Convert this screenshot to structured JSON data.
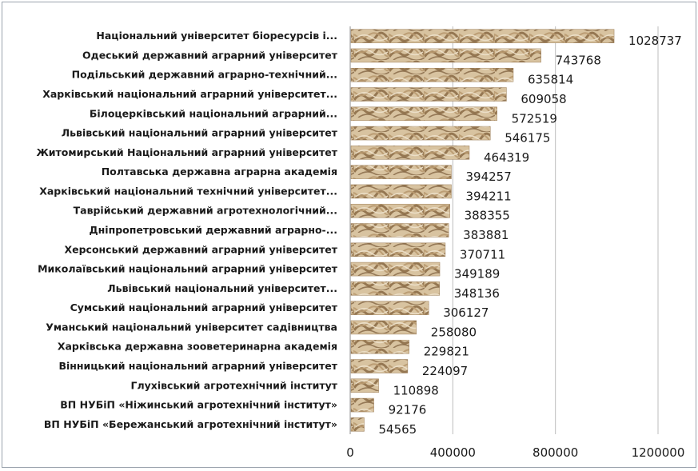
{
  "chart_data": {
    "type": "bar",
    "orientation": "horizontal",
    "categories": [
      "Національний університет біоресурсів і...",
      "Одеський державний аграрний університет",
      "Подільський державний аграрно-технічний...",
      "Харківський національний аграрний університет...",
      "Білоцерківський національний аграрний...",
      "Львівський національний аграрний університет",
      "Житомирський Національний аграрний університет",
      "Полтавська державна аграрна академія",
      "Харківський національний технічний університет...",
      "Таврійський державний агротехнологічний...",
      "Дніпропетровський державний аграрно-...",
      "Херсонський державний аграрний університет",
      "Миколаївський національний аграрний університет",
      "Львівський національний університет...",
      "Сумський національний аграрний університет",
      "Уманський національний університет садівництва",
      "Харківська державна зооветеринарна академія",
      "Вінницький національний аграрний університет",
      "Глухівський агротехнічний інститут",
      "ВП НУБіП «Ніжинський агротехнічний інститут»",
      "ВП НУБіП «Бережанський агротехнічний інститут»"
    ],
    "values": [
      1028737,
      743768,
      635814,
      609058,
      572519,
      546175,
      464319,
      394257,
      394211,
      388355,
      383881,
      370711,
      349189,
      348136,
      306127,
      258080,
      229821,
      224097,
      110898,
      92176,
      54565
    ],
    "value_labels": [
      "1028737",
      "743768",
      "635814",
      "609058",
      "572519",
      "546175",
      "464319",
      "394257",
      "394211",
      "388355",
      "383881",
      "370711",
      "349189",
      "348136",
      "306127",
      "258080",
      "229821",
      "224097",
      "110898",
      "92176",
      "54565"
    ],
    "xlim": [
      0,
      1200000
    ],
    "x_ticks": [
      0,
      400000,
      800000,
      1200000
    ],
    "x_tick_labels": [
      "0",
      "400000",
      "800000",
      "1200000"
    ],
    "grid": true,
    "legend": "none",
    "bar_fill": "textured-brown",
    "colors": {
      "bar_light": "#d8c3a0",
      "bar_dark": "#8a6a44",
      "bar_mid": "#b99a70"
    }
  }
}
